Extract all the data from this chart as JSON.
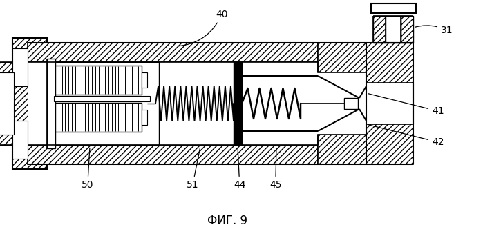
{
  "title": "ФИГ. 9",
  "title_fontsize": 12,
  "bg_color": "#ffffff",
  "line_color": "#000000",
  "label_40": "40",
  "label_31": "31",
  "label_41": "41",
  "label_42": "42",
  "label_44": "44",
  "label_45": "45",
  "label_50": "50",
  "label_51": "51",
  "label_fontsize": 10,
  "figw": 6.99,
  "figh": 3.42,
  "dpi": 100
}
